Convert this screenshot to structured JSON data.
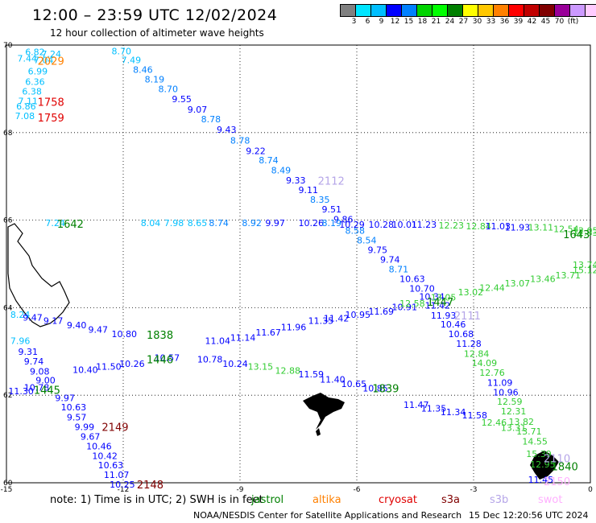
{
  "title": "12:00 – 23:59 UTC 12/02/2024",
  "subtitle": "12 hour collection of altimeter wave heights",
  "colorbar": {
    "colors": [
      "#808080",
      "#00e5ff",
      "#00bfff",
      "#0000ff",
      "#0080ff",
      "#00d400",
      "#00ff00",
      "#008000",
      "#ffff00",
      "#ffc800",
      "#ff8000",
      "#ff0000",
      "#c00000",
      "#800000",
      "#990099",
      "#cc99ff",
      "#ffccff",
      "#000000"
    ],
    "labels": [
      "3",
      "6",
      "9",
      "12",
      "15",
      "18",
      "21",
      "24",
      "27",
      "30",
      "33",
      "36",
      "39",
      "42",
      "45",
      "70",
      "(ft)"
    ]
  },
  "axes": {
    "x_ticks": [
      "-15",
      "-12",
      "-9",
      "-6",
      "-3",
      "0"
    ],
    "y_ticks": [
      "70",
      "68",
      "66",
      "64",
      "62",
      "60"
    ]
  },
  "map_data": {
    "lon_range": [
      -15,
      0
    ],
    "lat_range": [
      60,
      70
    ],
    "labels": [
      {
        "t": "6.82",
        "lon": -14.52,
        "lat": 69.84,
        "c": "#00bfff"
      },
      {
        "t": "7.24",
        "lon": -14.1,
        "lat": 69.8,
        "c": "#00bfff"
      },
      {
        "t": "7.44",
        "lon": -14.72,
        "lat": 69.7,
        "c": "#00bfff"
      },
      {
        "t": "7.04",
        "lon": -14.3,
        "lat": 69.66,
        "c": "#00bfff"
      },
      {
        "t": "6.99",
        "lon": -14.45,
        "lat": 69.4,
        "c": "#00bfff"
      },
      {
        "t": "6.36",
        "lon": -14.52,
        "lat": 69.16,
        "c": "#00bfff"
      },
      {
        "t": "6.38",
        "lon": -14.6,
        "lat": 68.94,
        "c": "#00bfff"
      },
      {
        "t": "7.11",
        "lon": -14.7,
        "lat": 68.72,
        "c": "#00bfff"
      },
      {
        "t": "6.86",
        "lon": -14.75,
        "lat": 68.6,
        "c": "#00bfff"
      },
      {
        "t": "7.08",
        "lon": -14.78,
        "lat": 68.38,
        "c": "#00bfff"
      },
      {
        "t": "8.70",
        "lon": -12.3,
        "lat": 69.86,
        "c": "#00bfff"
      },
      {
        "t": "7.49",
        "lon": -12.05,
        "lat": 69.66,
        "c": "#00bfff"
      },
      {
        "t": "8.46",
        "lon": -11.75,
        "lat": 69.44,
        "c": "#0080ff"
      },
      {
        "t": "8.19",
        "lon": -11.45,
        "lat": 69.22,
        "c": "#0080ff"
      },
      {
        "t": "8.70",
        "lon": -11.1,
        "lat": 69.0,
        "c": "#0080ff"
      },
      {
        "t": "9.55",
        "lon": -10.75,
        "lat": 68.77,
        "c": "#0000ff"
      },
      {
        "t": "9.07",
        "lon": -10.35,
        "lat": 68.53,
        "c": "#0000ff"
      },
      {
        "t": "8.78",
        "lon": -10.0,
        "lat": 68.31,
        "c": "#0080ff"
      },
      {
        "t": "9.43",
        "lon": -9.6,
        "lat": 68.07,
        "c": "#0000ff"
      },
      {
        "t": "8.78",
        "lon": -9.25,
        "lat": 67.82,
        "c": "#0080ff"
      },
      {
        "t": "9.22",
        "lon": -8.85,
        "lat": 67.58,
        "c": "#0000ff"
      },
      {
        "t": "8.74",
        "lon": -8.52,
        "lat": 67.37,
        "c": "#0080ff"
      },
      {
        "t": "8.49",
        "lon": -8.2,
        "lat": 67.14,
        "c": "#0080ff"
      },
      {
        "t": "9.33",
        "lon": -7.82,
        "lat": 66.91,
        "c": "#0000ff"
      },
      {
        "t": "9.11",
        "lon": -7.5,
        "lat": 66.69,
        "c": "#0000ff"
      },
      {
        "t": "8.35",
        "lon": -7.2,
        "lat": 66.47,
        "c": "#0080ff"
      },
      {
        "t": "9.51",
        "lon": -6.9,
        "lat": 66.25,
        "c": "#0000ff"
      },
      {
        "t": "9.86",
        "lon": -6.6,
        "lat": 66.02,
        "c": "#0000ff"
      },
      {
        "t": "8.58",
        "lon": -6.3,
        "lat": 65.76,
        "c": "#0080ff"
      },
      {
        "t": "8.54",
        "lon": -6.0,
        "lat": 65.54,
        "c": "#0080ff"
      },
      {
        "t": "9.75",
        "lon": -5.72,
        "lat": 65.32,
        "c": "#0000ff"
      },
      {
        "t": "9.74",
        "lon": -5.4,
        "lat": 65.1,
        "c": "#0000ff"
      },
      {
        "t": "8.71",
        "lon": -5.18,
        "lat": 64.88,
        "c": "#0080ff"
      },
      {
        "t": "10.63",
        "lon": -4.9,
        "lat": 64.66,
        "c": "#0000ff"
      },
      {
        "t": "10.70",
        "lon": -4.65,
        "lat": 64.44,
        "c": "#0000ff"
      },
      {
        "t": "10.34",
        "lon": -4.4,
        "lat": 64.26,
        "c": "#0000ff"
      },
      {
        "t": "11.42",
        "lon": -4.25,
        "lat": 64.05,
        "c": "#0000ff"
      },
      {
        "t": "11.93",
        "lon": -4.1,
        "lat": 63.82,
        "c": "#0000ff"
      },
      {
        "t": "10.46",
        "lon": -3.85,
        "lat": 63.62,
        "c": "#0000ff"
      },
      {
        "t": "10.68",
        "lon": -3.65,
        "lat": 63.4,
        "c": "#0000ff"
      },
      {
        "t": "11.28",
        "lon": -3.45,
        "lat": 63.18,
        "c": "#0000ff"
      },
      {
        "t": "12.84",
        "lon": -3.25,
        "lat": 62.95,
        "c": "#33cc33"
      },
      {
        "t": "14.09",
        "lon": -3.05,
        "lat": 62.74,
        "c": "#33cc33"
      },
      {
        "t": "12.76",
        "lon": -2.85,
        "lat": 62.52,
        "c": "#33cc33"
      },
      {
        "t": "11.09",
        "lon": -2.65,
        "lat": 62.29,
        "c": "#0000ff"
      },
      {
        "t": "10.96",
        "lon": -2.5,
        "lat": 62.07,
        "c": "#0000ff"
      },
      {
        "t": "12.59",
        "lon": -2.4,
        "lat": 61.86,
        "c": "#33cc33"
      },
      {
        "t": "12.31",
        "lon": -2.3,
        "lat": 61.64,
        "c": "#33cc33"
      },
      {
        "t": "13.82",
        "lon": -2.1,
        "lat": 61.4,
        "c": "#33cc33"
      },
      {
        "t": "13.71",
        "lon": -1.9,
        "lat": 61.18,
        "c": "#33cc33"
      },
      {
        "t": "14.55",
        "lon": -1.75,
        "lat": 60.95,
        "c": "#33cc33"
      },
      {
        "t": "15.39",
        "lon": -1.65,
        "lat": 60.66,
        "c": "#33cc33"
      },
      {
        "t": "12.95",
        "lon": -1.55,
        "lat": 60.42,
        "c": "#33cc33"
      },
      {
        "t": "11.45",
        "lon": -1.6,
        "lat": 60.07,
        "c": "#0000ff"
      },
      {
        "t": "7.24",
        "lon": -14.0,
        "lat": 65.94,
        "c": "#00bfff"
      },
      {
        "t": "8.04",
        "lon": -11.55,
        "lat": 65.94,
        "c": "#00bfff"
      },
      {
        "t": "7.98",
        "lon": -10.95,
        "lat": 65.94,
        "c": "#00bfff"
      },
      {
        "t": "8.65",
        "lon": -10.35,
        "lat": 65.94,
        "c": "#00bfff"
      },
      {
        "t": "8.74",
        "lon": -9.8,
        "lat": 65.94,
        "c": "#0080ff"
      },
      {
        "t": "8.92",
        "lon": -8.95,
        "lat": 65.94,
        "c": "#0080ff"
      },
      {
        "t": "9.97",
        "lon": -8.35,
        "lat": 65.94,
        "c": "#0000ff"
      },
      {
        "t": "10.26",
        "lon": -7.5,
        "lat": 65.94,
        "c": "#0000ff"
      },
      {
        "t": "8.19",
        "lon": -6.9,
        "lat": 65.94,
        "c": "#0080ff"
      },
      {
        "t": "10.29",
        "lon": -6.45,
        "lat": 65.9,
        "c": "#0000ff"
      },
      {
        "t": "10.28",
        "lon": -5.7,
        "lat": 65.9,
        "c": "#0000ff"
      },
      {
        "t": "10.01",
        "lon": -5.1,
        "lat": 65.9,
        "c": "#0000ff"
      },
      {
        "t": "11.23",
        "lon": -4.6,
        "lat": 65.9,
        "c": "#0000ff"
      },
      {
        "t": "12.23",
        "lon": -3.9,
        "lat": 65.88,
        "c": "#33cc33"
      },
      {
        "t": "12.84",
        "lon": -3.2,
        "lat": 65.86,
        "c": "#33cc33"
      },
      {
        "t": "11.03",
        "lon": -2.7,
        "lat": 65.86,
        "c": "#0000ff"
      },
      {
        "t": "11.93",
        "lon": -2.2,
        "lat": 65.84,
        "c": "#0000ff"
      },
      {
        "t": "13.11",
        "lon": -1.6,
        "lat": 65.84,
        "c": "#33cc33"
      },
      {
        "t": "12.54",
        "lon": -0.95,
        "lat": 65.8,
        "c": "#33cc33"
      },
      {
        "t": "12.05",
        "lon": -0.4,
        "lat": 65.76,
        "c": "#33cc33"
      },
      {
        "t": "12.83",
        "lon": -0.1,
        "lat": 65.72,
        "c": "#33cc33"
      },
      {
        "t": "8.24",
        "lon": -14.9,
        "lat": 63.84,
        "c": "#00bfff"
      },
      {
        "t": "9.47",
        "lon": -14.58,
        "lat": 63.78,
        "c": "#0000ff"
      },
      {
        "t": "9.17",
        "lon": -14.05,
        "lat": 63.7,
        "c": "#0000ff"
      },
      {
        "t": "9.40",
        "lon": -13.45,
        "lat": 63.6,
        "c": "#0000ff"
      },
      {
        "t": "9.47",
        "lon": -12.9,
        "lat": 63.5,
        "c": "#0000ff"
      },
      {
        "t": "10.80",
        "lon": -12.3,
        "lat": 63.4,
        "c": "#0000ff"
      },
      {
        "t": "11.04",
        "lon": -9.9,
        "lat": 63.24,
        "c": "#0000ff"
      },
      {
        "t": "11.14",
        "lon": -9.25,
        "lat": 63.32,
        "c": "#0000ff"
      },
      {
        "t": "11.67",
        "lon": -8.6,
        "lat": 63.44,
        "c": "#0000ff"
      },
      {
        "t": "11.96",
        "lon": -7.95,
        "lat": 63.56,
        "c": "#0000ff"
      },
      {
        "t": "11.35",
        "lon": -7.25,
        "lat": 63.7,
        "c": "#0000ff"
      },
      {
        "t": "11.42",
        "lon": -6.85,
        "lat": 63.76,
        "c": "#0000ff"
      },
      {
        "t": "10.95",
        "lon": -6.3,
        "lat": 63.84,
        "c": "#0000ff"
      },
      {
        "t": "11.69",
        "lon": -5.7,
        "lat": 63.92,
        "c": "#0000ff"
      },
      {
        "t": "10.91",
        "lon": -5.1,
        "lat": 64.02,
        "c": "#0000ff"
      },
      {
        "t": "12.58",
        "lon": -4.9,
        "lat": 64.1,
        "c": "#33cc33"
      },
      {
        "t": "13.05",
        "lon": -4.1,
        "lat": 64.24,
        "c": "#33cc33"
      },
      {
        "t": "13.02",
        "lon": -3.4,
        "lat": 64.36,
        "c": "#33cc33"
      },
      {
        "t": "12.44",
        "lon": -2.85,
        "lat": 64.46,
        "c": "#33cc33"
      },
      {
        "t": "13.07",
        "lon": -2.2,
        "lat": 64.56,
        "c": "#33cc33"
      },
      {
        "t": "13.46",
        "lon": -1.55,
        "lat": 64.66,
        "c": "#33cc33"
      },
      {
        "t": "13.71",
        "lon": -0.9,
        "lat": 64.74,
        "c": "#33cc33"
      },
      {
        "t": "15.12",
        "lon": -0.3,
        "lat": 64.86,
        "c": "#33cc33"
      },
      {
        "t": "13.74",
        "lon": 0.2,
        "lat": 64.98,
        "c": "#33cc33"
      },
      {
        "t": "7.96",
        "lon": -14.9,
        "lat": 63.24,
        "c": "#00bfff"
      },
      {
        "t": "9.31",
        "lon": -14.7,
        "lat": 63.0,
        "c": "#0000ff"
      },
      {
        "t": "9.74",
        "lon": -14.55,
        "lat": 62.78,
        "c": "#0000ff"
      },
      {
        "t": "9.08",
        "lon": -14.4,
        "lat": 62.55,
        "c": "#0000ff"
      },
      {
        "t": "9.00",
        "lon": -14.25,
        "lat": 62.34,
        "c": "#0000ff"
      },
      {
        "t": "10.78",
        "lon": -14.55,
        "lat": 62.18,
        "c": "#0000ff"
      },
      {
        "t": "11.30",
        "lon": -14.95,
        "lat": 62.1,
        "c": "#0000ff"
      },
      {
        "t": "9.97",
        "lon": -13.75,
        "lat": 61.94,
        "c": "#0000ff"
      },
      {
        "t": "10.63",
        "lon": -13.6,
        "lat": 61.73,
        "c": "#0000ff"
      },
      {
        "t": "9.57",
        "lon": -13.45,
        "lat": 61.5,
        "c": "#0000ff"
      },
      {
        "t": "9.99",
        "lon": -13.25,
        "lat": 61.28,
        "c": "#0000ff"
      },
      {
        "t": "9.67",
        "lon": -13.1,
        "lat": 61.06,
        "c": "#0000ff"
      },
      {
        "t": "10.46",
        "lon": -12.95,
        "lat": 60.84,
        "c": "#0000ff"
      },
      {
        "t": "10.42",
        "lon": -12.8,
        "lat": 60.62,
        "c": "#0000ff"
      },
      {
        "t": "10.63",
        "lon": -12.65,
        "lat": 60.4,
        "c": "#0000ff"
      },
      {
        "t": "11.07",
        "lon": -12.5,
        "lat": 60.18,
        "c": "#0000ff"
      },
      {
        "t": "10.25",
        "lon": -12.35,
        "lat": 59.96,
        "c": "#0000ff"
      },
      {
        "t": "10.40",
        "lon": -13.3,
        "lat": 62.58,
        "c": "#0000ff"
      },
      {
        "t": "11.50",
        "lon": -12.7,
        "lat": 62.66,
        "c": "#0000ff"
      },
      {
        "t": "10.26",
        "lon": -12.1,
        "lat": 62.72,
        "c": "#0000ff"
      },
      {
        "t": "10.57",
        "lon": -11.2,
        "lat": 62.86,
        "c": "#0000ff"
      },
      {
        "t": "10.78",
        "lon": -10.1,
        "lat": 62.82,
        "c": "#0000ff"
      },
      {
        "t": "10.24",
        "lon": -9.45,
        "lat": 62.72,
        "c": "#0000ff"
      },
      {
        "t": "13.15",
        "lon": -8.8,
        "lat": 62.66,
        "c": "#33cc33"
      },
      {
        "t": "12.88",
        "lon": -8.1,
        "lat": 62.56,
        "c": "#33cc33"
      },
      {
        "t": "11.59",
        "lon": -7.5,
        "lat": 62.48,
        "c": "#0000ff"
      },
      {
        "t": "11.40",
        "lon": -6.95,
        "lat": 62.36,
        "c": "#0000ff"
      },
      {
        "t": "10.65",
        "lon": -6.4,
        "lat": 62.26,
        "c": "#0000ff"
      },
      {
        "t": "10.85",
        "lon": -5.85,
        "lat": 62.16,
        "c": "#0000ff"
      },
      {
        "t": "11.47",
        "lon": -4.8,
        "lat": 61.78,
        "c": "#0000ff"
      },
      {
        "t": "11.35",
        "lon": -4.35,
        "lat": 61.7,
        "c": "#0000ff"
      },
      {
        "t": "11.34",
        "lon": -3.85,
        "lat": 61.62,
        "c": "#0000ff"
      },
      {
        "t": "11.58",
        "lon": -3.3,
        "lat": 61.54,
        "c": "#0000ff"
      },
      {
        "t": "12.46",
        "lon": -2.8,
        "lat": 61.38,
        "c": "#33cc33"
      },
      {
        "t": "13.31",
        "lon": -2.3,
        "lat": 61.26,
        "c": "#33cc33"
      }
    ],
    "ids": [
      {
        "t": "2029",
        "lon": -14.2,
        "lat": 69.64,
        "c": "#ff8000"
      },
      {
        "t": "1758",
        "lon": -14.2,
        "lat": 68.7,
        "c": "#e00000"
      },
      {
        "t": "1759",
        "lon": -14.2,
        "lat": 68.35,
        "c": "#e00000"
      },
      {
        "t": "2112",
        "lon": -7.0,
        "lat": 66.9,
        "c": "#b5a5e8"
      },
      {
        "t": "1642",
        "lon": -13.7,
        "lat": 65.92,
        "c": "#008000"
      },
      {
        "t": "1643",
        "lon": -0.7,
        "lat": 65.68,
        "c": "#008000"
      },
      {
        "t": "1447",
        "lon": -4.2,
        "lat": 64.14,
        "c": "#008000"
      },
      {
        "t": "2111",
        "lon": -3.5,
        "lat": 63.82,
        "c": "#b5a5e8"
      },
      {
        "t": "1838",
        "lon": -11.4,
        "lat": 63.38,
        "c": "#008000"
      },
      {
        "t": "1446",
        "lon": -11.4,
        "lat": 62.82,
        "c": "#008000"
      },
      {
        "t": "1445",
        "lon": -14.3,
        "lat": 62.12,
        "c": "#008000"
      },
      {
        "t": "1839",
        "lon": -5.6,
        "lat": 62.16,
        "c": "#008000"
      },
      {
        "t": "2149",
        "lon": -12.55,
        "lat": 61.28,
        "c": "#800000"
      },
      {
        "t": "2148",
        "lon": -11.65,
        "lat": 59.96,
        "c": "#800000"
      },
      {
        "t": "2110",
        "lon": -1.2,
        "lat": 60.56,
        "c": "#b5a5e8"
      },
      {
        "t": "1840",
        "lon": -1.0,
        "lat": 60.38,
        "c": "#008000"
      },
      {
        "t": "2150",
        "lon": -1.2,
        "lat": 60.04,
        "c": "#ffb0ff"
      }
    ]
  },
  "footer": {
    "note": "note:  1) Time is in UTC;  2) SWH is in feet",
    "legend": [
      {
        "label": "jastrol",
        "color": "#008000"
      },
      {
        "label": "altika",
        "color": "#ff8000"
      },
      {
        "label": "cryosat",
        "color": "#e00000"
      },
      {
        "label": "s3a",
        "color": "#800000"
      },
      {
        "label": "s3b",
        "color": "#b5a5e8"
      },
      {
        "label": "swot",
        "color": "#ffb0ff"
      }
    ],
    "credit": "NOAA/NESDIS Center for Satellite Applications and Research",
    "stamp": "15 Dec 12:20:56 UTC 2024"
  }
}
